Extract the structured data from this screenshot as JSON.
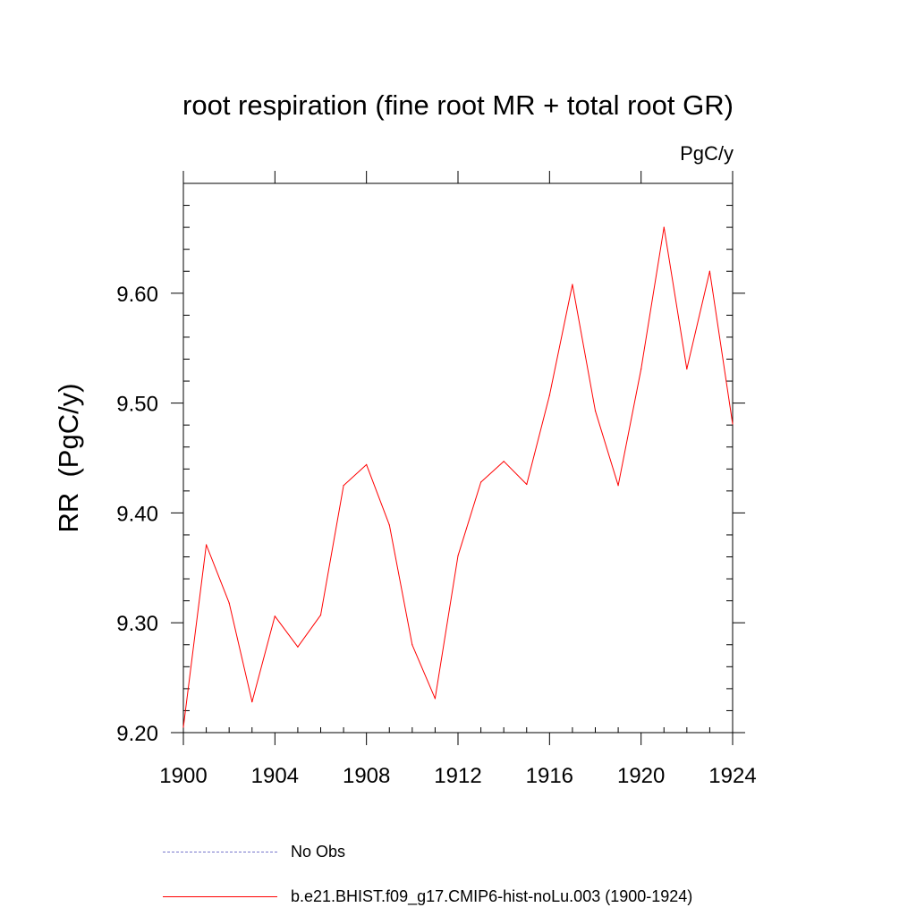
{
  "chart_data": {
    "type": "line",
    "title": "root respiration (fine root MR + total root GR)",
    "units": "PgC/y",
    "ylabel": "RR  (PgC/y)",
    "xlabel": "",
    "xlim": [
      1900,
      1924
    ],
    "ylim": [
      9.2,
      9.7
    ],
    "x_ticks": [
      1900,
      1904,
      1908,
      1912,
      1916,
      1920,
      1924
    ],
    "y_ticks": [
      "9.20",
      "9.30",
      "9.40",
      "9.50",
      "9.60"
    ],
    "grid": false,
    "legend_placement": "bottom",
    "series": [
      {
        "name": "b.e21.BHIST.f09_g17.CMIP6-hist-noLu.003 (1900-1924)",
        "color": "#ff0000",
        "x": [
          1900,
          1901,
          1902,
          1903,
          1904,
          1905,
          1906,
          1907,
          1908,
          1909,
          1910,
          1911,
          1912,
          1913,
          1914,
          1915,
          1916,
          1917,
          1918,
          1919,
          1920,
          1921,
          1922,
          1923,
          1924
        ],
        "y": [
          9.205,
          9.371,
          9.318,
          9.228,
          9.306,
          9.278,
          9.307,
          9.425,
          9.444,
          9.389,
          9.28,
          9.231,
          9.361,
          9.428,
          9.447,
          9.426,
          9.507,
          9.608,
          9.493,
          9.425,
          9.531,
          9.66,
          9.531,
          9.62,
          9.481
        ]
      }
    ],
    "legend": [
      {
        "label": "No Obs",
        "color": "#7777cc",
        "style": "dashed"
      },
      {
        "label": "b.e21.BHIST.f09_g17.CMIP6-hist-noLu.003 (1900-1924)",
        "color": "#ff0000",
        "style": "solid"
      }
    ]
  }
}
